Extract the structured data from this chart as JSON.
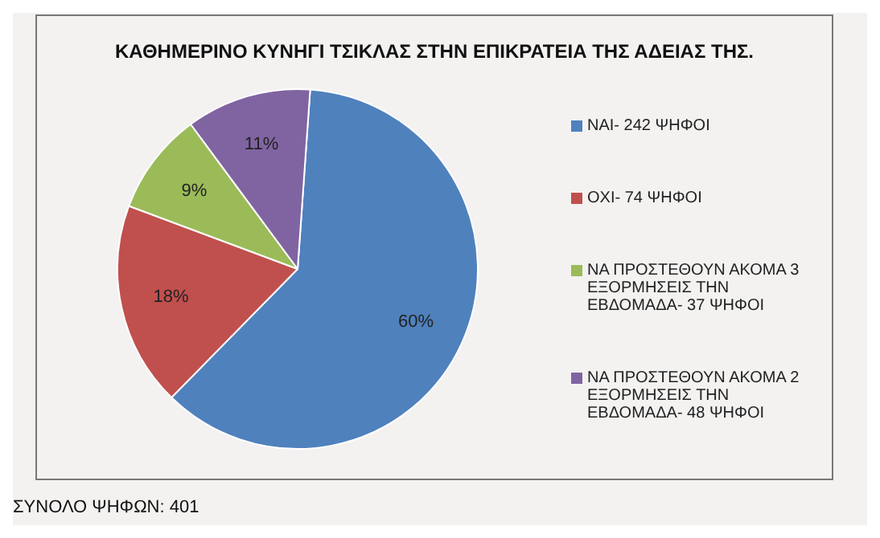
{
  "chart_data": {
    "type": "pie",
    "title": "ΚΑΘΗΜΕΡΙΝΟ ΚΥΝΗΓΙ ΤΣΙΚΛΑΣ ΣΤΗΝ ΕΠΙΚΡΑΤΕΙΑ ΤΗΣ ΑΔΕΙΑΣ ΤΗΣ.",
    "categories": [
      "ΝΑΙ- 242 ΨΗΦΟΙ",
      "ΟΧΙ- 74 ΨΗΦΟΙ",
      "ΝΑ ΠΡΟΣΤΕΘΟΥΝ ΑΚΟΜΑ 3 ΕΞΟΡΜΗΣΕΙΣ ΤΗΝ ΕΒΔΟΜΑΔΑ- 37 ΨΗΦΟΙ",
      "ΝΑ ΠΡΟΣΤΕΘΟΥΝ ΑΚΟΜΑ 2 ΕΞΟΡΜΗΣΕΙΣ ΤΗΝ ΕΒΔΟΜΑΔΑ- 48 ΨΗΦΟΙ"
    ],
    "values": [
      60,
      18,
      9,
      11
    ],
    "value_labels": [
      "60%",
      "18%",
      "9%",
      "11%"
    ],
    "colors": [
      "#4f81bd",
      "#c0504d",
      "#9bbb59",
      "#8064a2"
    ],
    "legend": "right",
    "annotations": [
      "ΣΥΝΟΛΟ ΨΗΦΩΝ: 401"
    ]
  }
}
